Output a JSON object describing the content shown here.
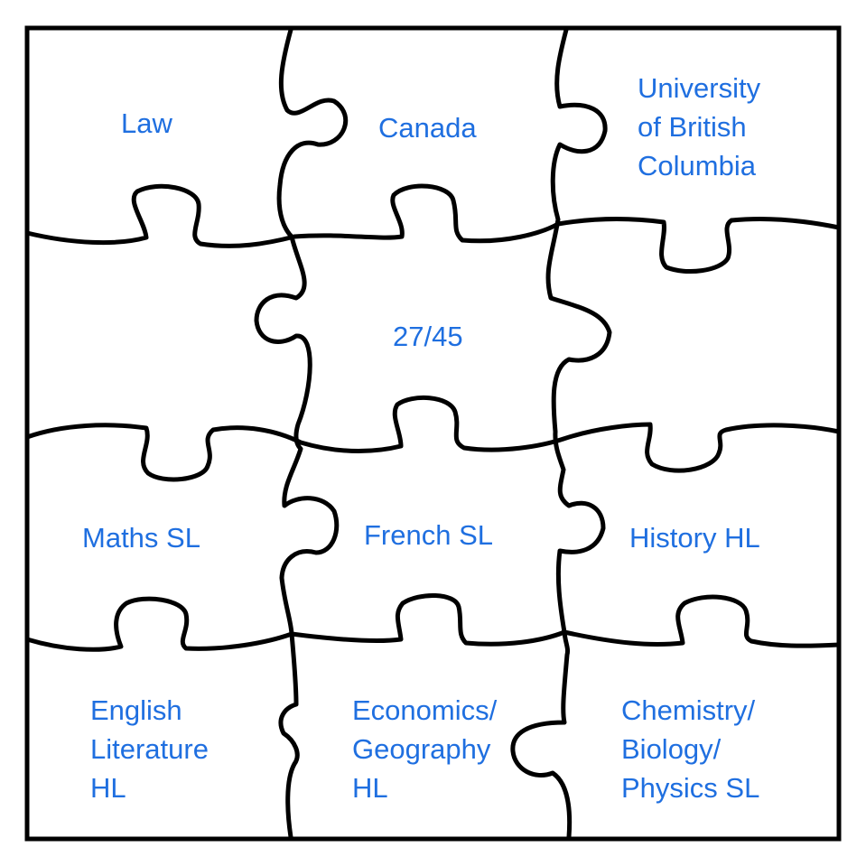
{
  "colors": {
    "text": "#1f6fe0",
    "lines": "#000000",
    "background": "#ffffff"
  },
  "pieces": {
    "r1c1": {
      "lines": [
        "Law"
      ]
    },
    "r1c2": {
      "lines": [
        "Canada"
      ]
    },
    "r1c3": {
      "lines": [
        "University",
        "of British",
        "Columbia"
      ]
    },
    "r2c1": {
      "lines": []
    },
    "r2c2": {
      "lines": [
        "27/45"
      ]
    },
    "r2c3": {
      "lines": []
    },
    "r3c1": {
      "lines": [
        "Maths SL"
      ]
    },
    "r3c2": {
      "lines": [
        "French SL"
      ]
    },
    "r3c3": {
      "lines": [
        "History HL"
      ]
    },
    "r4c1": {
      "lines": [
        "English",
        "Literature",
        "HL"
      ]
    },
    "r4c2": {
      "lines": [
        "Economics/",
        "Geography",
        "HL"
      ]
    },
    "r4c3": {
      "lines": [
        "Chemistry/",
        "Biology/",
        "Physics SL"
      ]
    }
  }
}
